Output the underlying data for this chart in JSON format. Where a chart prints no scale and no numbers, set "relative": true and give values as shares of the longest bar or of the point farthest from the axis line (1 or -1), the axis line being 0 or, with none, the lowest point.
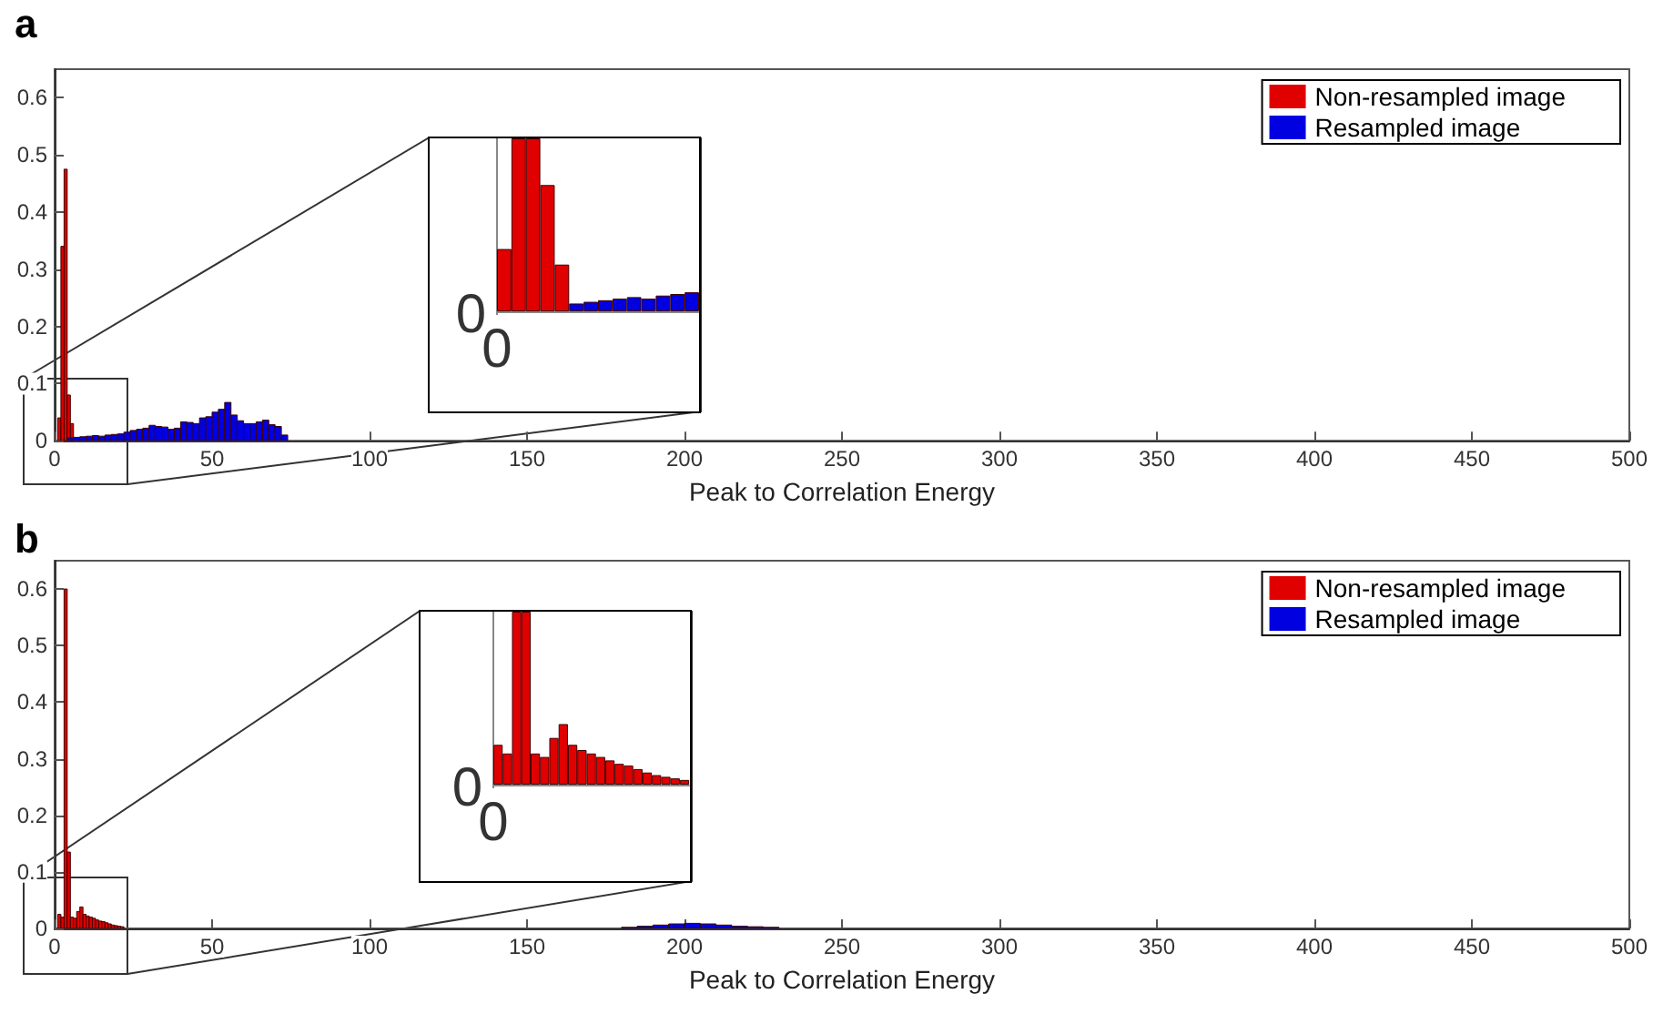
{
  "chart_data": [
    {
      "type": "bar",
      "title": "a",
      "xlabel": "Peak to Correlation Energy",
      "xlim": [
        0,
        500
      ],
      "ylim": [
        0,
        0.65
      ],
      "xticks": [
        0,
        50,
        100,
        150,
        200,
        250,
        300,
        350,
        400,
        450,
        500
      ],
      "yticks": [
        0,
        0.1,
        0.2,
        0.3,
        0.4,
        0.5,
        0.6
      ],
      "grid": false,
      "legend": "top right",
      "series": [
        {
          "name": "Non-resampled image",
          "color": "#e00000",
          "x": [
            1.5,
            2.5,
            3.5,
            4.5,
            5.5
          ],
          "values": [
            0.04,
            0.34,
            0.475,
            0.08,
            0.03
          ]
        },
        {
          "name": "Resampled image",
          "color": "#0000e0",
          "x": [
            5,
            7,
            9,
            11,
            13,
            15,
            17,
            19,
            21,
            23,
            25,
            27,
            29,
            31,
            33,
            35,
            37,
            39,
            41,
            43,
            45,
            47,
            49,
            51,
            53,
            55,
            57,
            59,
            61,
            63,
            65,
            67,
            69,
            71,
            73
          ],
          "values": [
            0.005,
            0.006,
            0.007,
            0.008,
            0.009,
            0.008,
            0.01,
            0.011,
            0.012,
            0.015,
            0.018,
            0.02,
            0.022,
            0.027,
            0.025,
            0.024,
            0.02,
            0.022,
            0.033,
            0.032,
            0.03,
            0.04,
            0.042,
            0.05,
            0.055,
            0.067,
            0.045,
            0.035,
            0.03,
            0.03,
            0.033,
            0.036,
            0.028,
            0.025,
            0.01
          ]
        }
      ]
    },
    {
      "type": "bar",
      "relative": true,
      "annotations": [
        "0",
        "0"
      ],
      "categories": [
        null,
        null,
        null,
        null,
        null,
        null,
        null,
        null,
        null,
        null,
        null,
        null,
        null,
        null
      ],
      "series": [
        {
          "colors": [
            "#e00000",
            "#e00000",
            "#e00000",
            "#e00000",
            "#e00000",
            "#0000e0",
            "#0000e0",
            "#0000e0",
            "#0000e0",
            "#0000e0",
            "#0000e0",
            "#0000e0",
            "#0000e0",
            "#0000e0"
          ],
          "values": [
            0.36,
            1,
            1,
            0.73,
            0.27,
            0.045,
            0.055,
            0.064,
            0.073,
            0.082,
            0.073,
            0.091,
            0.1,
            0.11
          ]
        }
      ]
    },
    {
      "type": "bar",
      "title": "b",
      "xlabel": "Peak to Correlation Energy",
      "xlim": [
        0,
        500
      ],
      "ylim": [
        0,
        0.65
      ],
      "xticks": [
        0,
        50,
        100,
        150,
        200,
        250,
        300,
        350,
        400,
        450,
        500
      ],
      "yticks": [
        0,
        0.1,
        0.2,
        0.3,
        0.4,
        0.5,
        0.6
      ],
      "grid": false,
      "legend": "top right",
      "series": [
        {
          "name": "Non-resampled image",
          "color": "#e00000",
          "x": [
            1.5,
            2.5,
            3.5,
            4.5,
            5.5,
            6.5,
            7.5,
            8.5,
            9.5,
            10.5,
            11.5,
            12.5,
            13.5,
            14.5,
            15.5,
            16.5,
            17.5,
            18.5,
            19.5,
            20.5,
            21.5
          ],
          "values": [
            0.025,
            0.02,
            0.6,
            0.135,
            0.02,
            0.018,
            0.03,
            0.038,
            0.025,
            0.022,
            0.02,
            0.018,
            0.015,
            0.013,
            0.012,
            0.01,
            0.008,
            0.006,
            0.005,
            0.004,
            0.003
          ]
        },
        {
          "name": "Resampled image",
          "color": "#0000e0",
          "x": [
            182.5,
            187.5,
            192.5,
            197.5,
            202.5,
            207.5,
            212.5,
            217.5,
            222.5,
            227.5
          ],
          "values": [
            0.002,
            0.004,
            0.006,
            0.008,
            0.009,
            0.008,
            0.006,
            0.004,
            0.003,
            0.002
          ]
        }
      ]
    },
    {
      "type": "bar",
      "relative": true,
      "annotations": [
        "0",
        "0"
      ],
      "categories": [
        null,
        null,
        null,
        null,
        null,
        null,
        null,
        null,
        null,
        null,
        null,
        null,
        null,
        null,
        null,
        null,
        null,
        null,
        null,
        null,
        null
      ],
      "series": [
        {
          "color": "#e00000",
          "values": [
            0.23,
            0.18,
            1,
            1,
            0.18,
            0.16,
            0.27,
            0.35,
            0.23,
            0.2,
            0.18,
            0.16,
            0.14,
            0.12,
            0.11,
            0.09,
            0.07,
            0.055,
            0.045,
            0.036,
            0.027
          ]
        }
      ]
    }
  ]
}
